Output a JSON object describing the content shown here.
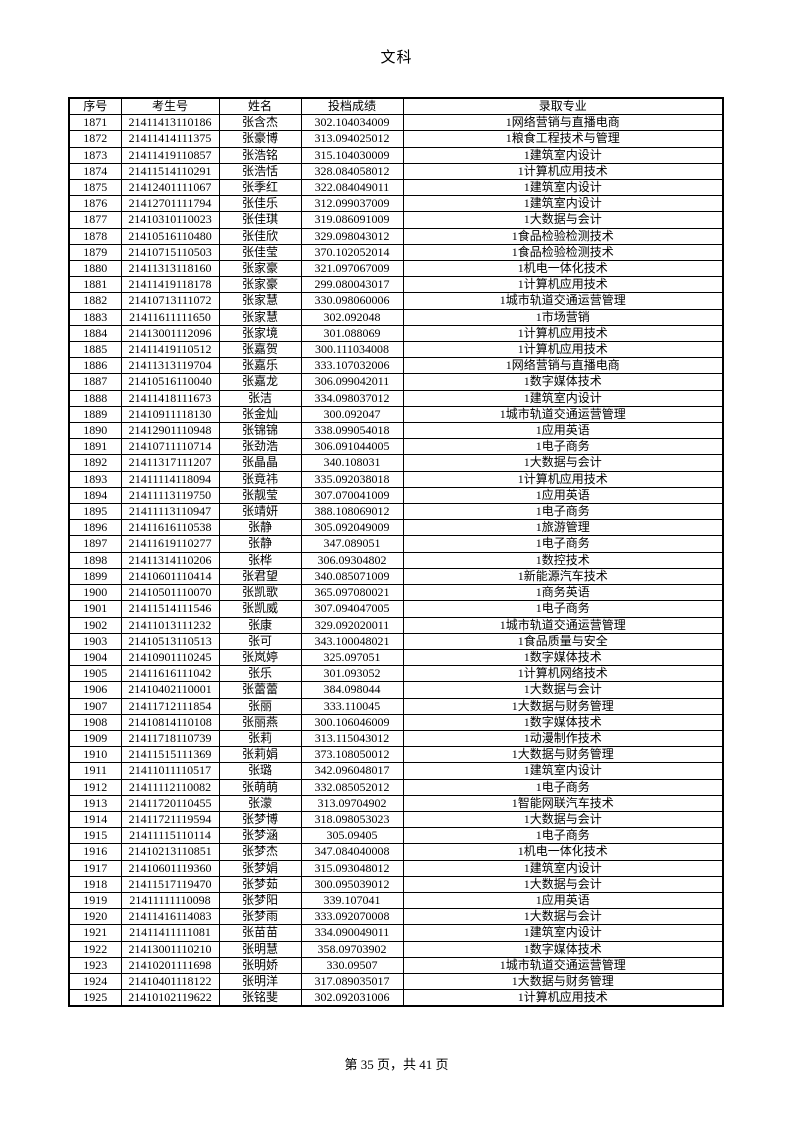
{
  "page": {
    "title": "文科",
    "footer": "第 35 页，共 41 页"
  },
  "table": {
    "headers": [
      "序号",
      "考生号",
      "姓名",
      "投档成绩",
      "录取专业"
    ],
    "rows": [
      [
        "1871",
        "21411413110186",
        "张含杰",
        "302.104034009",
        "1网络营销与直播电商"
      ],
      [
        "1872",
        "21411414111375",
        "张豪博",
        "313.094025012",
        "1粮食工程技术与管理"
      ],
      [
        "1873",
        "21411419110857",
        "张浩铭",
        "315.104030009",
        "1建筑室内设计"
      ],
      [
        "1874",
        "21411514110291",
        "张浩恬",
        "328.084058012",
        "1计算机应用技术"
      ],
      [
        "1875",
        "21412401111067",
        "张季红",
        "322.084049011",
        "1建筑室内设计"
      ],
      [
        "1876",
        "21412701111794",
        "张佳乐",
        "312.099037009",
        "1建筑室内设计"
      ],
      [
        "1877",
        "21410310110023",
        "张佳琪",
        "319.086091009",
        "1大数据与会计"
      ],
      [
        "1878",
        "21410516110480",
        "张佳欣",
        "329.098043012",
        "1食品检验检测技术"
      ],
      [
        "1879",
        "21410715110503",
        "张佳莹",
        "370.102052014",
        "1食品检验检测技术"
      ],
      [
        "1880",
        "21411313118160",
        "张家豪",
        "321.097067009",
        "1机电一体化技术"
      ],
      [
        "1881",
        "21411419118178",
        "张家豪",
        "299.080043017",
        "1计算机应用技术"
      ],
      [
        "1882",
        "21410713111072",
        "张家慧",
        "330.098060006",
        "1城市轨道交通运营管理"
      ],
      [
        "1883",
        "21411611111650",
        "张家慧",
        "302.092048",
        "1市场营销"
      ],
      [
        "1884",
        "21413001112096",
        "张家境",
        "301.088069",
        "1计算机应用技术"
      ],
      [
        "1885",
        "21411419110512",
        "张嘉贺",
        "300.111034008",
        "1计算机应用技术"
      ],
      [
        "1886",
        "21411313119704",
        "张嘉乐",
        "333.107032006",
        "1网络营销与直播电商"
      ],
      [
        "1887",
        "21410516110040",
        "张嘉龙",
        "306.099042011",
        "1数字媒体技术"
      ],
      [
        "1888",
        "21411418111673",
        "张洁",
        "334.098037012",
        "1建筑室内设计"
      ],
      [
        "1889",
        "21410911118130",
        "张金灿",
        "300.092047",
        "1城市轨道交通运营管理"
      ],
      [
        "1890",
        "21412901110948",
        "张锦锦",
        "338.099054018",
        "1应用英语"
      ],
      [
        "1891",
        "21410711110714",
        "张劲浩",
        "306.091044005",
        "1电子商务"
      ],
      [
        "1892",
        "21411317111207",
        "张晶晶",
        "340.108031",
        "1大数据与会计"
      ],
      [
        "1893",
        "21411114118094",
        "张竟祎",
        "335.092038018",
        "1计算机应用技术"
      ],
      [
        "1894",
        "21411113119750",
        "张靓莹",
        "307.070041009",
        "1应用英语"
      ],
      [
        "1895",
        "21411113110947",
        "张靖妍",
        "388.108069012",
        "1电子商务"
      ],
      [
        "1896",
        "21411616110538",
        "张静",
        "305.092049009",
        "1旅游管理"
      ],
      [
        "1897",
        "21411619110277",
        "张静",
        "347.089051",
        "1电子商务"
      ],
      [
        "1898",
        "21411314110206",
        "张桦",
        "306.09304802",
        "1数控技术"
      ],
      [
        "1899",
        "21410601110414",
        "张君望",
        "340.085071009",
        "1新能源汽车技术"
      ],
      [
        "1900",
        "21410501110070",
        "张凯歌",
        "365.097080021",
        "1商务英语"
      ],
      [
        "1901",
        "21411514111546",
        "张凯威",
        "307.094047005",
        "1电子商务"
      ],
      [
        "1902",
        "21411013111232",
        "张康",
        "329.092020011",
        "1城市轨道交通运营管理"
      ],
      [
        "1903",
        "21410513110513",
        "张可",
        "343.100048021",
        "1食品质量与安全"
      ],
      [
        "1904",
        "21410901110245",
        "张岚婷",
        "325.097051",
        "1数字媒体技术"
      ],
      [
        "1905",
        "21411616111042",
        "张乐",
        "301.093052",
        "1计算机网络技术"
      ],
      [
        "1906",
        "21410402110001",
        "张蕾蕾",
        "384.098044",
        "1大数据与会计"
      ],
      [
        "1907",
        "21411712111854",
        "张丽",
        "333.110045",
        "1大数据与财务管理"
      ],
      [
        "1908",
        "21410814110108",
        "张丽燕",
        "300.106046009",
        "1数字媒体技术"
      ],
      [
        "1909",
        "21411718110739",
        "张莉",
        "313.115043012",
        "1动漫制作技术"
      ],
      [
        "1910",
        "21411515111369",
        "张莉娟",
        "373.108050012",
        "1大数据与财务管理"
      ],
      [
        "1911",
        "21411011110517",
        "张璐",
        "342.096048017",
        "1建筑室内设计"
      ],
      [
        "1912",
        "21411112110082",
        "张萌萌",
        "332.085052012",
        "1电子商务"
      ],
      [
        "1913",
        "21411720110455",
        "张濛",
        "313.09704902",
        "1智能网联汽车技术"
      ],
      [
        "1914",
        "21411721119594",
        "张梦博",
        "318.098053023",
        "1大数据与会计"
      ],
      [
        "1915",
        "21411115110114",
        "张梦涵",
        "305.09405",
        "1电子商务"
      ],
      [
        "1916",
        "21410213110851",
        "张梦杰",
        "347.084040008",
        "1机电一体化技术"
      ],
      [
        "1917",
        "21410601119360",
        "张梦娟",
        "315.093048012",
        "1建筑室内设计"
      ],
      [
        "1918",
        "21411517119470",
        "张梦茹",
        "300.095039012",
        "1大数据与会计"
      ],
      [
        "1919",
        "21411111110098",
        "张梦阳",
        "339.107041",
        "1应用英语"
      ],
      [
        "1920",
        "21411416114083",
        "张梦雨",
        "333.092070008",
        "1大数据与会计"
      ],
      [
        "1921",
        "21411411111081",
        "张苗苗",
        "334.090049011",
        "1建筑室内设计"
      ],
      [
        "1922",
        "21413001110210",
        "张明慧",
        "358.09703902",
        "1数字媒体技术"
      ],
      [
        "1923",
        "21410201111698",
        "张明娇",
        "330.09507",
        "1城市轨道交通运营管理"
      ],
      [
        "1924",
        "21410401118122",
        "张明洋",
        "317.089035017",
        "1大数据与财务管理"
      ],
      [
        "1925",
        "21410102119622",
        "张铭斐",
        "302.092031006",
        "1计算机应用技术"
      ]
    ]
  }
}
